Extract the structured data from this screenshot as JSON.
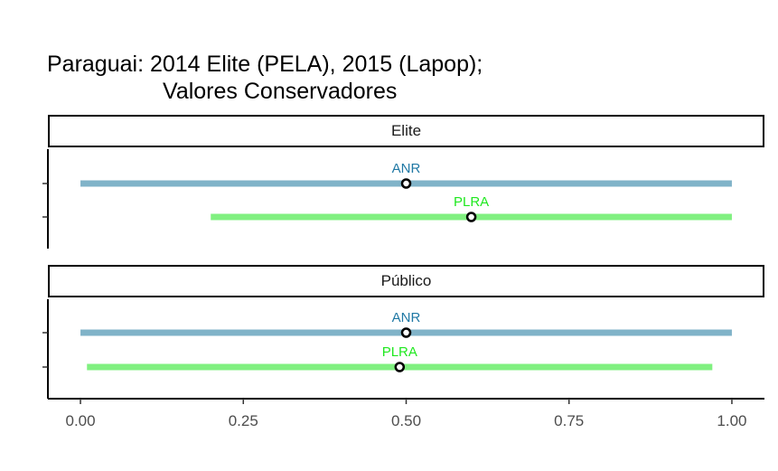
{
  "title_line1": "Paraguai: 2014 Elite (PELA), 2015 (Lapop);",
  "title_line2": "Valores Conservadores",
  "chart_data": [
    {
      "type": "interval",
      "panel": "Elite",
      "series": [
        {
          "name": "ANR",
          "low": 0.0,
          "point": 0.5,
          "high": 1.0,
          "color": "#80b3c8",
          "label_color": "#1f78a4"
        },
        {
          "name": "PLRA",
          "low": 0.2,
          "point": 0.6,
          "high": 1.0,
          "color": "#80f080",
          "label_color": "#1ee81e"
        }
      ]
    },
    {
      "type": "interval",
      "panel": "Público",
      "series": [
        {
          "name": "ANR",
          "low": 0.0,
          "point": 0.5,
          "high": 1.0,
          "color": "#80b3c8",
          "label_color": "#1f78a4"
        },
        {
          "name": "PLRA",
          "low": 0.01,
          "point": 0.49,
          "high": 0.97,
          "color": "#80f080",
          "label_color": "#1ee81e"
        }
      ]
    }
  ],
  "x_axis": {
    "xlim": [
      -0.05,
      1.05
    ],
    "ticks": [
      0.0,
      0.25,
      0.5,
      0.75,
      1.0
    ],
    "tick_labels": [
      "0.00",
      "0.25",
      "0.50",
      "0.75",
      "1.00"
    ]
  }
}
